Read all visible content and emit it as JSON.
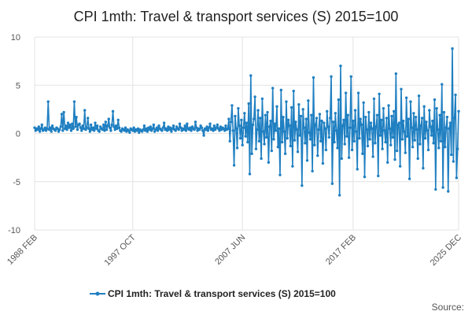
{
  "chart_data": {
    "type": "line",
    "title": "CPI 1mth: Travel & transport services (S) 2015=100",
    "xlabel": "",
    "ylabel": "",
    "ylim": [
      -10,
      10
    ],
    "yticks": [
      "10",
      "5",
      "0",
      "-5",
      "-10"
    ],
    "xticks": [
      "1988 FEB",
      "1997 OCT",
      "2007 JUN",
      "2017 FEB",
      "2025 DEC"
    ],
    "xrange": [
      "1988 FEB",
      "2025 DEC"
    ],
    "grid": true,
    "legend_position": "bottom",
    "series": [
      {
        "name": "CPI 1mth: Travel & transport services (S) 2015=100",
        "color": "#1f7fc1",
        "values_1988_1996": [
          0.6,
          0.3,
          0.5,
          0.4,
          0.7,
          0.2,
          0.5,
          0.9,
          0.3,
          0.4,
          0.6,
          0.3,
          0.5,
          3.3,
          0.4,
          0.6,
          0.2,
          0.8,
          0.5,
          0.4,
          0.3,
          0.6,
          0.5,
          0.2,
          0.4,
          0.7,
          2.0,
          0.3,
          2.2,
          0.5,
          0.8,
          0.4,
          1.1,
          0.6,
          0.9,
          0.3,
          1.0,
          0.5,
          3.3,
          0.7,
          1.7,
          0.4,
          0.9,
          1.0,
          0.6,
          0.3,
          0.8,
          0.5,
          2.4,
          0.4,
          0.6,
          1.6,
          0.5,
          0.2,
          0.9,
          0.4,
          0.6,
          0.3,
          1.1,
          0.5,
          0.8,
          0.3,
          0.2,
          0.7,
          0.5,
          0.4,
          0.9,
          0.3,
          1.2,
          0.4,
          0.8,
          1.5,
          0.6,
          0.3,
          0.9,
          2.3,
          0.7,
          0.4,
          0.8,
          0.5,
          1.4,
          0.6,
          0.3,
          0.2,
          0.5,
          0.4,
          0.3,
          0.6,
          0.2,
          0.4,
          0.3,
          0.1,
          0.5,
          0.4,
          0.3,
          0.6,
          0.2,
          0.4,
          0.3,
          0.5,
          0.1,
          0.4,
          0.3,
          0.2
        ],
        "values_1997_2003": [
          0.4,
          0.8,
          0.3,
          0.5,
          0.2,
          0.6,
          0.4,
          0.7,
          0.3,
          0.5,
          0.9,
          0.2,
          0.4,
          0.6,
          0.3,
          0.8,
          0.5,
          0.4,
          0.3,
          0.6,
          1.1,
          0.4,
          0.5,
          0.3,
          0.7,
          0.4,
          0.6,
          0.2,
          0.5,
          0.8,
          0.4,
          0.3,
          0.7,
          0.5,
          0.4,
          1.0,
          0.6,
          0.3,
          0.5,
          0.4,
          0.8,
          0.3,
          1.0,
          0.5,
          0.4,
          0.6,
          0.3,
          0.7,
          0.5,
          0.4,
          1.2,
          0.6,
          0.3,
          0.5,
          0.4,
          0.8,
          0.6,
          0.3,
          -0.2,
          0.5,
          0.4,
          0.7,
          0.3,
          0.6,
          1.0,
          0.4,
          0.5,
          0.3,
          0.8,
          0.4,
          0.6,
          0.9,
          0.5,
          0.3,
          0.7,
          0.4,
          0.6,
          0.5,
          0.3,
          0.8,
          0.4,
          0.5
        ],
        "values_2004_2025": [
          1.5,
          -0.8,
          1.2,
          2.9,
          0.3,
          -3.3,
          1.8,
          0.5,
          -1.5,
          2.6,
          0.8,
          -0.5,
          1.4,
          -1.2,
          0.6,
          2.1,
          -0.3,
          1.1,
          -0.9,
          3.1,
          -4.2,
          6.0,
          -2.1,
          0.9,
          1.5,
          3.8,
          -1.6,
          0.4,
          2.4,
          -0.8,
          1.6,
          -2.6,
          3.6,
          0.2,
          -1.1,
          1.9,
          -0.4,
          2.2,
          -3.0,
          0.7,
          1.3,
          -1.8,
          4.7,
          -0.6,
          1.0,
          0.3,
          2.8,
          -1.4,
          0.5,
          -4.3,
          4.5,
          -0.9,
          1.7,
          0.2,
          -2.1,
          3.3,
          -0.5,
          1.4,
          0.8,
          -1.3,
          2.7,
          -3.4,
          4.4,
          -0.7,
          1.2,
          0.4,
          -1.9,
          3.0,
          -0.2,
          1.8,
          -5.4,
          2.5,
          0.6,
          -1.0,
          1.5,
          -2.8,
          3.4,
          0.1,
          -0.6,
          1.9,
          -3.9,
          5.8,
          -1.2,
          0.9,
          1.6,
          -2.3,
          0.4,
          2.0,
          -0.8,
          1.3,
          -3.1,
          1.1,
          0.5,
          -1.7,
          2.3,
          0.7,
          -0.4,
          1.6,
          5.9,
          -5.2,
          1.2,
          -0.9,
          2.1,
          0.3,
          -1.5,
          3.5,
          -6.4,
          7.0,
          -2.6,
          0.8,
          1.4,
          -1.1,
          4.2,
          -0.3,
          1.9,
          -2.5,
          0.6,
          5.9,
          -1.7,
          1.3,
          -0.8,
          2.4,
          0.2,
          -3.7,
          4.2,
          -0.5,
          1.5,
          0.9,
          -2.1,
          3.2,
          -4.5,
          1.7,
          0.4,
          -1.3,
          2.2,
          -0.6,
          1.1,
          0.5,
          -2.4,
          3.6,
          -1.0,
          0.7,
          1.9,
          -4.4,
          4.1,
          -0.2,
          1.4,
          -1.6,
          2.6,
          0.3,
          -0.9,
          1.6,
          -3.0,
          2.9,
          0.5,
          -1.2,
          1.8,
          -0.4,
          2.3,
          -2.7,
          6.2,
          -1.8,
          0.9,
          1.1,
          -3.4,
          4.6,
          -0.6,
          1.3,
          0.2,
          -2.0,
          3.7,
          -0.3,
          1.5,
          -4.7,
          3.3,
          0.6,
          -1.4,
          2.1,
          -0.7,
          1.7,
          0.4,
          -2.6,
          3.9,
          -1.1,
          0.8,
          1.6,
          -3.6,
          2.8,
          -0.5,
          1.2,
          0.3,
          -1.7,
          2.4,
          0.7,
          -0.2,
          1.3,
          -1.0,
          3.5,
          -5.8,
          2.6,
          0.4,
          -1.5,
          1.9,
          -0.8,
          5.1,
          -5.6,
          2.2,
          -1.4,
          0.6,
          1.7,
          -6.0,
          0.5,
          1.1,
          -2.2,
          8.8,
          -2.9,
          1.6,
          4.0,
          -4.6,
          -1.6,
          2.3
        ]
      }
    ]
  },
  "legend": {
    "label": "CPI 1mth: Travel & transport services (S) 2015=100"
  },
  "source": {
    "label": "Source:"
  }
}
